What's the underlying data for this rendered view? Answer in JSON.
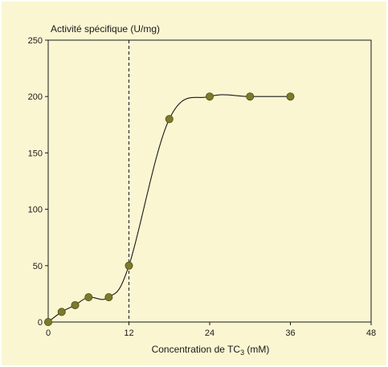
{
  "chart_data": {
    "type": "line",
    "title": "",
    "ylabel": "Activité spécifique (U/mg)",
    "xlabel": "Concentration de TC",
    "xlabel_subscript": "3",
    "xlabel_suffix": " (mM)",
    "xlim": [
      0,
      48
    ],
    "ylim": [
      0,
      250
    ],
    "x_ticks": [
      0,
      12,
      24,
      36,
      48
    ],
    "y_ticks": [
      0,
      50,
      100,
      150,
      200,
      250
    ],
    "grid": false,
    "legend": "none",
    "reference_line": {
      "x": 12,
      "style": "dashed"
    },
    "series": [
      {
        "points": [
          {
            "x": 0,
            "y": 0
          },
          {
            "x": 2,
            "y": 9
          },
          {
            "x": 4,
            "y": 15
          },
          {
            "x": 6,
            "y": 22
          },
          {
            "x": 9,
            "y": 22
          },
          {
            "x": 12,
            "y": 50
          },
          {
            "x": 18,
            "y": 180
          },
          {
            "x": 24,
            "y": 200
          },
          {
            "x": 30,
            "y": 200
          },
          {
            "x": 36,
            "y": 200
          }
        ],
        "marker_color": "#7d7a2a",
        "line_color": "#1a1a1a"
      }
    ],
    "background_color": "#fbf6d2"
  }
}
